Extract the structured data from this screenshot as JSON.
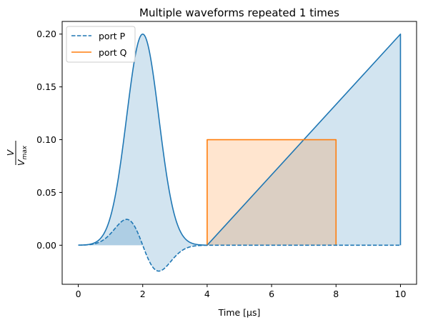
{
  "chart_data": {
    "type": "line",
    "title": "Multiple waveforms repeated 1 times",
    "xlabel": "Time [µs]",
    "ylabel": {
      "numerator": "V",
      "denominator": "V",
      "denominator_sub": "max"
    },
    "xlim": [
      -0.5,
      10.5
    ],
    "ylim": [
      -0.037,
      0.212
    ],
    "xticks": [
      0,
      2,
      4,
      6,
      8,
      10
    ],
    "xtick_labels": [
      "0",
      "2",
      "4",
      "6",
      "8",
      "10"
    ],
    "yticks": [
      0.0,
      0.05,
      0.1,
      0.15,
      0.2
    ],
    "ytick_labels": [
      "0.00",
      "0.05",
      "0.10",
      "0.15",
      "0.20"
    ],
    "grid": false,
    "legend_position": "top-left",
    "series": [
      {
        "name": "port P",
        "color": "#1f77b4",
        "line_style": "dashed",
        "filled": true,
        "segments": [
          {
            "shape": "gaussian-derivative",
            "x_range": [
              0,
              4
            ],
            "center": 2.0,
            "extrema": [
              [
                1.5,
                0.0245
              ],
              [
                2.5,
                -0.0245
              ]
            ]
          },
          {
            "shape": "flat",
            "x_range": [
              4,
              10
            ],
            "value": 0.0
          }
        ]
      },
      {
        "name": "port Q",
        "color": "#ff7f0e",
        "line_style": "solid",
        "filled": true,
        "segments": [
          {
            "shape": "rectangle",
            "x_range": [
              4,
              8
            ],
            "value": 0.1
          }
        ]
      },
      {
        "name": "",
        "color": "#1f77b4",
        "line_style": "solid",
        "filled": true,
        "segments": [
          {
            "shape": "gaussian",
            "x_range": [
              0,
              4
            ],
            "center": 2.0,
            "peak": 0.2,
            "sigma": 0.5
          },
          {
            "shape": "ramp",
            "x_range": [
              4,
              10
            ],
            "start": 0.0,
            "end": 0.2
          }
        ]
      }
    ]
  }
}
